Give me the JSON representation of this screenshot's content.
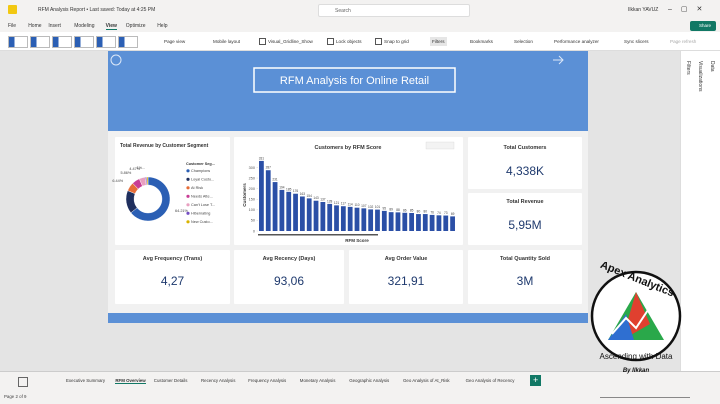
{
  "window": {
    "title": "RFM Analysis Report • Last saved: Today at 4:25 PM",
    "search": "Search",
    "user": "Ilkkan YAVUZ"
  },
  "menu": [
    "File",
    "Home",
    "Insert",
    "Modeling",
    "View",
    "Optimize",
    "Help"
  ],
  "share": "Share",
  "ribbon": [
    "Page view",
    "Mobile layout",
    "Visual_Gridline_Show",
    "Lock objects",
    "Snap to grid",
    "Filters",
    "Bookmarks",
    "Selection",
    "Performance analyzer",
    "Sync slicers",
    "Page refresh"
  ],
  "panes": [
    "Filters",
    "Visualizations",
    "Data"
  ],
  "report": {
    "title": "RFM Analysis for Online Retail",
    "cards": [
      {
        "label": "Total Customers",
        "value": "4,338K"
      },
      {
        "label": "Total Revenue",
        "value": "5,95M"
      },
      {
        "label": "Avg Frequency (Trans)",
        "value": "4,27"
      },
      {
        "label": "Avg Recency (Days)",
        "value": "93,06"
      },
      {
        "label": "Avg Order Value",
        "value": "321,91"
      },
      {
        "label": "Total Quantity Sold",
        "value": "3M"
      }
    ]
  },
  "chart_data": [
    {
      "type": "pie",
      "title": "Total Revenue by Customer Segment",
      "legend_title": "Customer Seg...",
      "categories": [
        "Champions",
        "Loyal Custo...",
        "At Risk",
        "Needs Atte...",
        "Can't Lose T...",
        "Hibernating",
        "New Custo..."
      ],
      "values": [
        64.21,
        17.02,
        6.44,
        5.86,
        4.47,
        1,
        1
      ],
      "value_labels": [
        "64.21%",
        null,
        "6.44%",
        "5.86%",
        "4.47%",
        "1%...",
        null
      ],
      "colors": [
        "#2b5fb4",
        "#1f2f5e",
        "#e66c37",
        "#c83d95",
        "#e8a0c0",
        "#744ec2",
        "#d9b300"
      ]
    },
    {
      "type": "bar",
      "title": "Customers by RFM Score",
      "y_label": "Customers",
      "x_label": "RFM Score",
      "color": "#2b4fa6",
      "values": [
        331,
        287,
        231,
        194,
        185,
        176,
        163,
        154,
        143,
        137,
        128,
        121,
        117,
        114,
        110,
        107,
        102,
        101,
        95,
        89,
        88,
        86,
        85,
        80,
        80,
        76,
        74,
        73,
        69
      ],
      "ylim": [
        0,
        340
      ],
      "yticks": [
        0,
        50,
        100,
        150,
        200,
        250,
        300
      ]
    }
  ],
  "tabs": [
    "Executive Summary",
    "RFM Overview",
    "Customer Details",
    "Recency Analysis",
    "Frequency Analysis",
    "Monetary Analysis",
    "Geographic Analysis",
    "Geo Analysis of At_Risk",
    "Geo Analysis of Recency"
  ],
  "status": "Page 2 of 9",
  "watermark": {
    "brand": "Apex Analytics",
    "tagline": "Ascending with Data",
    "author": "By Ilkkan"
  }
}
